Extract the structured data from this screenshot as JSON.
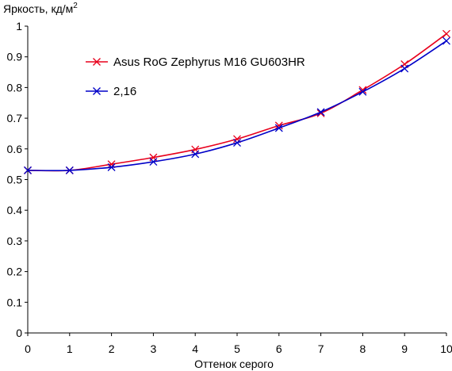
{
  "chart_data": {
    "type": "line",
    "ylabel": "Яркость, кд/м",
    "ylabel_sup": "2",
    "xlabel": "Оттенок серого",
    "xlim": [
      0,
      10
    ],
    "ylim": [
      0,
      1
    ],
    "x_ticks": [
      0,
      1,
      2,
      3,
      4,
      5,
      6,
      7,
      8,
      9,
      10
    ],
    "y_ticks": [
      0,
      0.1,
      0.2,
      0.3,
      0.4,
      0.5,
      0.6,
      0.7,
      0.8,
      0.9,
      1
    ],
    "y_tick_labels": [
      "0",
      "0.1",
      "0.2",
      "0.3",
      "0.4",
      "0.5",
      "0.6",
      "0.7",
      "0.8",
      "0.9",
      "1"
    ],
    "grid": false,
    "legend_position": "top-left",
    "x": [
      0,
      1,
      2,
      3,
      4,
      5,
      6,
      7,
      8,
      9,
      10
    ],
    "series": [
      {
        "name": "Asus RoG Zephyrus M16 GU603HR",
        "color": "#e8001c",
        "marker": "x",
        "values": [
          0.53,
          0.53,
          0.55,
          0.572,
          0.598,
          0.632,
          0.676,
          0.716,
          0.792,
          0.876,
          0.975
        ]
      },
      {
        "name": "2,16",
        "color": "#0000c8",
        "marker": "x",
        "values": [
          0.53,
          0.53,
          0.54,
          0.558,
          0.583,
          0.62,
          0.668,
          0.72,
          0.786,
          0.862,
          0.952
        ]
      }
    ]
  }
}
